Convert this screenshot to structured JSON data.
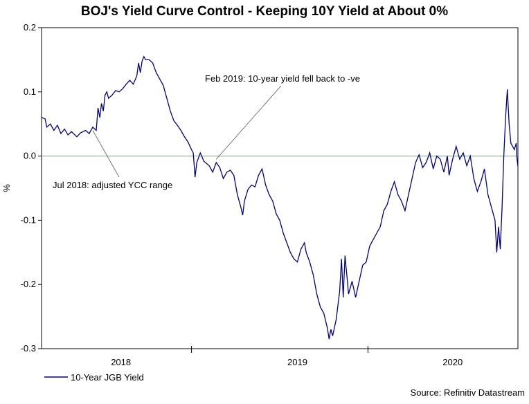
{
  "chart_data": {
    "type": "line",
    "title": "BOJ's Yield Curve Control - Keeping 10Y Yield at About 0%",
    "ylabel": "%",
    "xlabel": "",
    "ylim": [
      -0.3,
      0.2
    ],
    "yticks": [
      0.2,
      0.1,
      0.0,
      -0.1,
      -0.2,
      -0.3
    ],
    "ytick_labels": [
      "0.2",
      "0.1",
      "0.0",
      "-0.1",
      "-0.2",
      "-0.3"
    ],
    "xlim": [
      2017.55,
      2020.25
    ],
    "xtick_labels": [
      {
        "label": "2018",
        "x": 2018.0
      },
      {
        "label": "2019",
        "x": 2019.0
      },
      {
        "label": "2020",
        "x": 2019.88
      }
    ],
    "year_boundaries": [
      2018.4,
      2019.4
    ],
    "zero_line": true,
    "series": [
      {
        "name": "10-Year JGB Yield",
        "color": "#000080",
        "points": [
          [
            2017.55,
            0.06
          ],
          [
            2017.57,
            0.058
          ],
          [
            2017.58,
            0.045
          ],
          [
            2017.6,
            0.05
          ],
          [
            2017.62,
            0.04
          ],
          [
            2017.64,
            0.048
          ],
          [
            2017.66,
            0.035
          ],
          [
            2017.68,
            0.042
          ],
          [
            2017.7,
            0.033
          ],
          [
            2017.72,
            0.038
          ],
          [
            2017.75,
            0.03
          ],
          [
            2017.77,
            0.036
          ],
          [
            2017.8,
            0.04
          ],
          [
            2017.82,
            0.035
          ],
          [
            2017.84,
            0.045
          ],
          [
            2017.86,
            0.04
          ],
          [
            2017.87,
            0.075
          ],
          [
            2017.88,
            0.06
          ],
          [
            2017.89,
            0.082
          ],
          [
            2017.9,
            0.07
          ],
          [
            2017.91,
            0.095
          ],
          [
            2017.92,
            0.1
          ],
          [
            2017.93,
            0.09
          ],
          [
            2017.95,
            0.095
          ],
          [
            2017.97,
            0.102
          ],
          [
            2017.99,
            0.1
          ],
          [
            2018.01,
            0.105
          ],
          [
            2018.03,
            0.112
          ],
          [
            2018.05,
            0.118
          ],
          [
            2018.07,
            0.112
          ],
          [
            2018.09,
            0.125
          ],
          [
            2018.1,
            0.145
          ],
          [
            2018.11,
            0.13
          ],
          [
            2018.12,
            0.148
          ],
          [
            2018.13,
            0.155
          ],
          [
            2018.14,
            0.15
          ],
          [
            2018.16,
            0.15
          ],
          [
            2018.18,
            0.145
          ],
          [
            2018.2,
            0.13
          ],
          [
            2018.22,
            0.12
          ],
          [
            2018.24,
            0.11
          ],
          [
            2018.26,
            0.09
          ],
          [
            2018.28,
            0.07
          ],
          [
            2018.3,
            0.055
          ],
          [
            2018.32,
            0.048
          ],
          [
            2018.34,
            0.04
          ],
          [
            2018.36,
            0.03
          ],
          [
            2018.38,
            0.022
          ],
          [
            2018.4,
            0.01
          ],
          [
            2018.41,
            0.005
          ],
          [
            2018.42,
            -0.033
          ],
          [
            2018.43,
            -0.01
          ],
          [
            2018.45,
            0.005
          ],
          [
            2018.47,
            -0.008
          ],
          [
            2018.5,
            -0.015
          ],
          [
            2018.52,
            -0.025
          ],
          [
            2018.54,
            -0.01
          ],
          [
            2018.56,
            -0.018
          ],
          [
            2018.58,
            -0.035
          ],
          [
            2018.6,
            -0.025
          ],
          [
            2018.62,
            -0.022
          ],
          [
            2018.64,
            -0.03
          ],
          [
            2018.66,
            -0.06
          ],
          [
            2018.68,
            -0.08
          ],
          [
            2018.69,
            -0.092
          ],
          [
            2018.7,
            -0.07
          ],
          [
            2018.72,
            -0.052
          ],
          [
            2018.74,
            -0.045
          ],
          [
            2018.76,
            -0.048
          ],
          [
            2018.78,
            -0.03
          ],
          [
            2018.8,
            -0.02
          ],
          [
            2018.82,
            -0.045
          ],
          [
            2018.84,
            -0.06
          ],
          [
            2018.86,
            -0.07
          ],
          [
            2018.88,
            -0.09
          ],
          [
            2018.9,
            -0.1
          ],
          [
            2018.92,
            -0.12
          ],
          [
            2018.94,
            -0.135
          ],
          [
            2018.96,
            -0.15
          ],
          [
            2018.98,
            -0.16
          ],
          [
            2019.0,
            -0.165
          ],
          [
            2019.02,
            -0.145
          ],
          [
            2019.04,
            -0.135
          ],
          [
            2019.05,
            -0.15
          ],
          [
            2019.07,
            -0.165
          ],
          [
            2019.09,
            -0.185
          ],
          [
            2019.11,
            -0.215
          ],
          [
            2019.13,
            -0.235
          ],
          [
            2019.15,
            -0.245
          ],
          [
            2019.17,
            -0.268
          ],
          [
            2019.18,
            -0.285
          ],
          [
            2019.19,
            -0.27
          ],
          [
            2019.2,
            -0.28
          ],
          [
            2019.22,
            -0.255
          ],
          [
            2019.24,
            -0.21
          ],
          [
            2019.25,
            -0.16
          ],
          [
            2019.26,
            -0.22
          ],
          [
            2019.27,
            -0.155
          ],
          [
            2019.29,
            -0.215
          ],
          [
            2019.31,
            -0.195
          ],
          [
            2019.33,
            -0.22
          ],
          [
            2019.35,
            -0.195
          ],
          [
            2019.37,
            -0.17
          ],
          [
            2019.39,
            -0.165
          ],
          [
            2019.41,
            -0.14
          ],
          [
            2019.43,
            -0.13
          ],
          [
            2019.45,
            -0.12
          ],
          [
            2019.47,
            -0.11
          ],
          [
            2019.49,
            -0.085
          ],
          [
            2019.51,
            -0.075
          ],
          [
            2019.53,
            -0.055
          ],
          [
            2019.55,
            -0.04
          ],
          [
            2019.57,
            -0.06
          ],
          [
            2019.59,
            -0.07
          ],
          [
            2019.61,
            -0.085
          ],
          [
            2019.63,
            -0.06
          ],
          [
            2019.65,
            -0.035
          ],
          [
            2019.67,
            -0.01
          ],
          [
            2019.69,
            0.002
          ],
          [
            2019.71,
            -0.018
          ],
          [
            2019.73,
            -0.01
          ],
          [
            2019.75,
            0.005
          ],
          [
            2019.77,
            -0.02
          ],
          [
            2019.79,
            0.0
          ],
          [
            2019.81,
            -0.005
          ],
          [
            2019.83,
            -0.025
          ],
          [
            2019.85,
            0.0
          ],
          [
            2019.86,
            -0.03
          ],
          [
            2019.88,
            -0.005
          ],
          [
            2019.9,
            0.015
          ],
          [
            2019.92,
            -0.005
          ],
          [
            2019.94,
            0.005
          ],
          [
            2019.96,
            -0.015
          ],
          [
            2019.98,
            0.0
          ],
          [
            2020.0,
            -0.035
          ],
          [
            2020.02,
            -0.055
          ],
          [
            2020.04,
            -0.04
          ],
          [
            2020.06,
            -0.02
          ],
          [
            2020.08,
            -0.06
          ],
          [
            2020.1,
            -0.08
          ],
          [
            2020.12,
            -0.1
          ],
          [
            2020.13,
            -0.15
          ],
          [
            2020.14,
            -0.11
          ],
          [
            2020.15,
            -0.145
          ],
          [
            2020.16,
            -0.08
          ],
          [
            2020.17,
            0.0
          ],
          [
            2020.18,
            0.06
          ],
          [
            2020.19,
            0.104
          ],
          [
            2020.2,
            0.05
          ],
          [
            2020.21,
            0.02
          ],
          [
            2020.22,
            0.015
          ],
          [
            2020.23,
            0.01
          ],
          [
            2020.24,
            0.02
          ],
          [
            2020.245,
            -0.005
          ],
          [
            2020.25,
            -0.016
          ]
        ]
      }
    ],
    "annotations": [
      {
        "text": "Jul 2018: adjusted YCC range",
        "x": 2017.84,
        "y": 0.04
      },
      {
        "text": "Feb 2019: 10-year yield fell back to -ve",
        "x": 2018.54,
        "y": -0.005
      }
    ],
    "legend": {
      "position": "bottom-left",
      "entries": [
        "10-Year JGB Yield"
      ]
    },
    "source": "Source: Refinitiv Datastream"
  }
}
